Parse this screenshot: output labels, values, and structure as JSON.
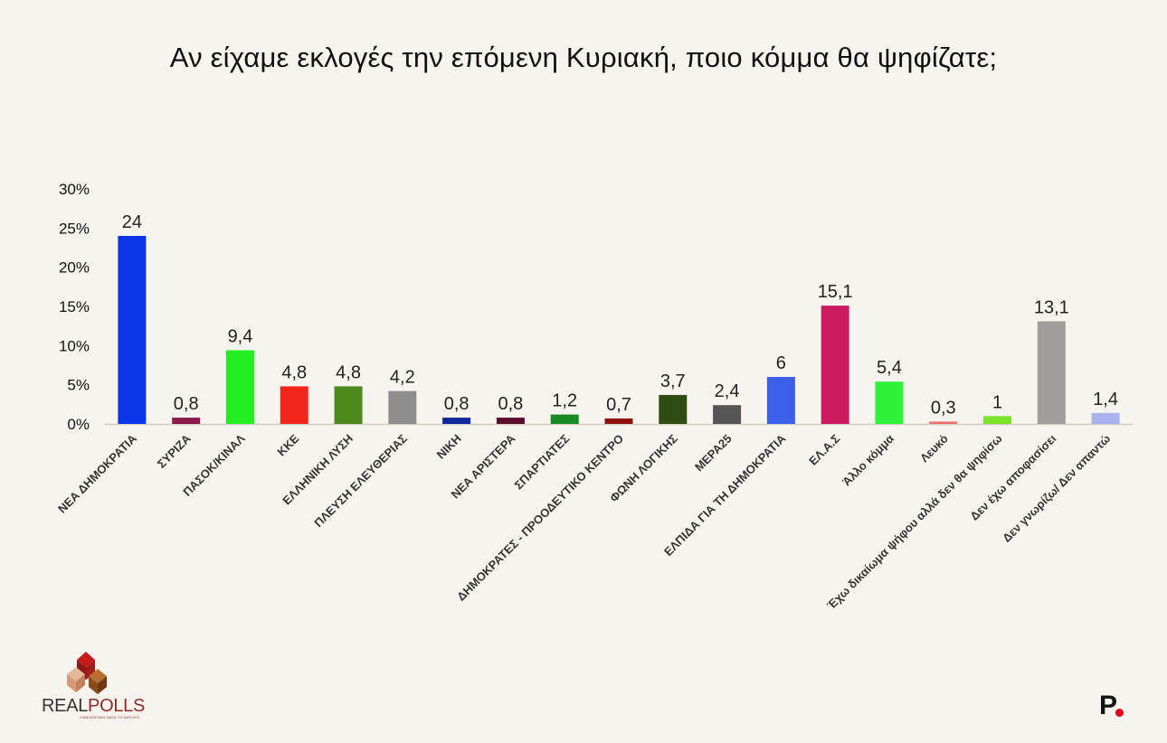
{
  "title": "Αν είχαμε εκλογές την επόμενη Κυριακή, ποιο κόμμα θα ψηφίζατε;",
  "logo_left": {
    "text_prefix": "REAL",
    "text_suffix": "POLLS",
    "tagline": "CONVERTING DATA TO INSIGHT"
  },
  "logo_right": {
    "text": "P"
  },
  "chart_data": {
    "type": "bar",
    "ylim": [
      0,
      30
    ],
    "yticks": [
      "0%",
      "5%",
      "10%",
      "15%",
      "20%",
      "25%",
      "30%"
    ],
    "grid": false,
    "categories": [
      "ΝΕΑ ΔΗΜΟΚΡΑΤΙΑ",
      "ΣΥΡΙΖΑ",
      "ΠΑΣΟΚ/ΚΙΝΑΛ",
      "ΚΚΕ",
      "ΕΛΛΗΝΙΚΗ ΛΥΣΗ",
      "ΠΛΕΥΣΗ ΕΛΕΥΘΕΡΙΑΣ",
      "ΝΙΚΗ",
      "ΝΕΑ ΑΡΙΣΤΕΡΑ",
      "ΣΠΑΡΤΙΑΤΕΣ",
      "ΔΗΜΟΚΡΑΤΕΣ - ΠΡΟΟΔΕΥΤΙΚΟ ΚΕΝΤΡΟ",
      "ΦΩΝΗ ΛΟΓΙΚΗΣ",
      "ΜΕΡΑ25",
      "ΕΛΠΙΔΑ ΓΙΑ ΤΗ ΔΗΜΟΚΡΑΤΙΑ",
      "ΕΛ.Α.Σ",
      "Άλλο κόμμα",
      "Λευκό",
      "Έχω δικαίωμα ψήφου αλλά δεν θα ψηφίσω",
      "Δεν έχω αποφασίσει",
      "Δεν γνωρίζω/ Δεν απαντώ"
    ],
    "values": [
      24,
      0.8,
      9.4,
      4.8,
      4.8,
      4.2,
      0.8,
      0.8,
      1.2,
      0.7,
      3.7,
      2.4,
      6,
      15.1,
      5.4,
      0.3,
      1,
      13.1,
      1.4
    ],
    "value_labels": [
      "24",
      "0,8",
      "9,4",
      "4,8",
      "4,8",
      "4,2",
      "0,8",
      "0,8",
      "1,2",
      "0,7",
      "3,7",
      "2,4",
      "6",
      "15,1",
      "5,4",
      "0,3",
      "1",
      "13,1",
      "1,4"
    ],
    "colors": [
      "#0a36e8",
      "#8b1a4a",
      "#22ee22",
      "#f2261b",
      "#4c8a1e",
      "#8e8e8e",
      "#0c2a9a",
      "#5a0f2e",
      "#1a8a22",
      "#8e1212",
      "#2f4d12",
      "#555555",
      "#3b5fe8",
      "#cc1c60",
      "#2ff23a",
      "#f07070",
      "#7be32a",
      "#a09e9a",
      "#a9b3f0"
    ]
  }
}
